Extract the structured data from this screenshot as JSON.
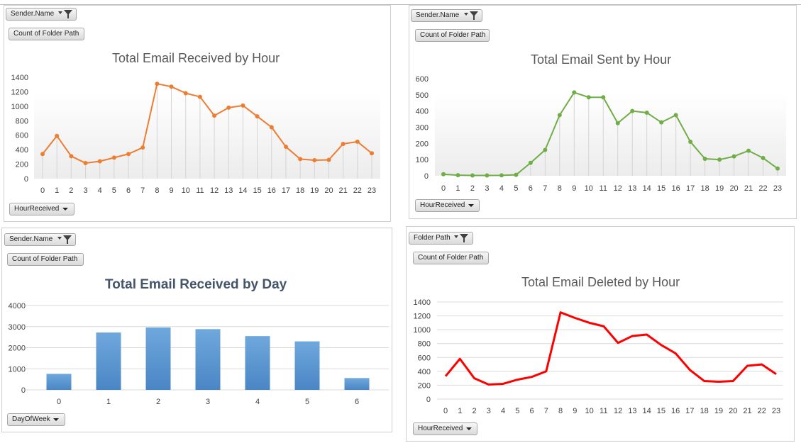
{
  "charts": [
    {
      "filter": {
        "label": "Sender.Name",
        "icon": "filter-funnel-icon"
      },
      "value_field": "Count of Folder Path",
      "axis_field": {
        "label": "HourReceived",
        "icon": "dropdown-arrow-icon"
      },
      "color": "#ed7d31"
    },
    {
      "filter": {
        "label": "Sender.Name",
        "icon": "filter-funnel-icon"
      },
      "value_field": "Count of Folder Path",
      "axis_field": {
        "label": "HourReceived",
        "icon": "dropdown-arrow-icon"
      },
      "color": "#70ad47"
    },
    {
      "filter": {
        "label": "Sender.Name",
        "icon": "filter-funnel-icon"
      },
      "value_field": "Count of Folder Path",
      "axis_field": {
        "label": "DayOfWeek",
        "icon": "dropdown-arrow-icon"
      },
      "color": "#5b9bd5"
    },
    {
      "filter": {
        "label": "Folder Path",
        "icon": "filter-funnel-icon"
      },
      "value_field": "Count of Folder Path",
      "axis_field": {
        "label": "HourReceived",
        "icon": "dropdown-arrow-icon"
      },
      "color": "#ff0000"
    }
  ],
  "chart_data": [
    {
      "type": "line",
      "title": "Total Email Received by Hour",
      "categories": [
        "0",
        "1",
        "2",
        "3",
        "4",
        "5",
        "6",
        "7",
        "8",
        "9",
        "10",
        "11",
        "12",
        "13",
        "14",
        "15",
        "16",
        "17",
        "18",
        "19",
        "20",
        "21",
        "22",
        "23"
      ],
      "values": [
        340,
        590,
        310,
        215,
        240,
        290,
        340,
        430,
        1310,
        1270,
        1180,
        1130,
        870,
        980,
        1010,
        860,
        710,
        440,
        270,
        255,
        260,
        480,
        510,
        350
      ],
      "yticks": [
        "0",
        "200",
        "400",
        "600",
        "800",
        "1000",
        "1200",
        "1400"
      ],
      "ylim": [
        0,
        1400
      ],
      "markers": true,
      "grid": false
    },
    {
      "type": "line",
      "title": "Total Email Sent by Hour",
      "categories": [
        "0",
        "1",
        "2",
        "3",
        "4",
        "5",
        "6",
        "7",
        "8",
        "9",
        "10",
        "11",
        "12",
        "13",
        "14",
        "15",
        "16",
        "17",
        "18",
        "19",
        "20",
        "21",
        "22",
        "23"
      ],
      "values": [
        10,
        4,
        2,
        2,
        3,
        6,
        80,
        160,
        375,
        515,
        485,
        485,
        325,
        400,
        390,
        330,
        375,
        210,
        105,
        100,
        120,
        155,
        110,
        45
      ],
      "yticks": [
        "0",
        "100",
        "200",
        "300",
        "400",
        "500",
        "600"
      ],
      "ylim": [
        0,
        600
      ],
      "markers": true,
      "grid": false
    },
    {
      "type": "bar",
      "title": "Total Email Received by Day",
      "categories": [
        "0",
        "1",
        "2",
        "3",
        "4",
        "5",
        "6"
      ],
      "values": [
        760,
        2720,
        2960,
        2880,
        2550,
        2300,
        560
      ],
      "yticks": [
        "0",
        "1000",
        "2000",
        "3000",
        "4000"
      ],
      "ylim": [
        0,
        4000
      ],
      "grid": true
    },
    {
      "type": "line",
      "title": "Total Email Deleted by Hour",
      "categories": [
        "0",
        "1",
        "2",
        "3",
        "4",
        "5",
        "6",
        "7",
        "8",
        "9",
        "10",
        "11",
        "12",
        "13",
        "14",
        "15",
        "16",
        "17",
        "18",
        "19",
        "20",
        "21",
        "22",
        "23"
      ],
      "values": [
        330,
        580,
        300,
        210,
        220,
        280,
        320,
        400,
        1250,
        1170,
        1100,
        1050,
        810,
        910,
        930,
        780,
        660,
        420,
        260,
        250,
        260,
        480,
        500,
        360
      ],
      "yticks": [
        "0",
        "200",
        "400",
        "600",
        "800",
        "1000",
        "1200",
        "1400"
      ],
      "ylim": [
        0,
        1400
      ],
      "markers": false,
      "grid": true
    }
  ]
}
